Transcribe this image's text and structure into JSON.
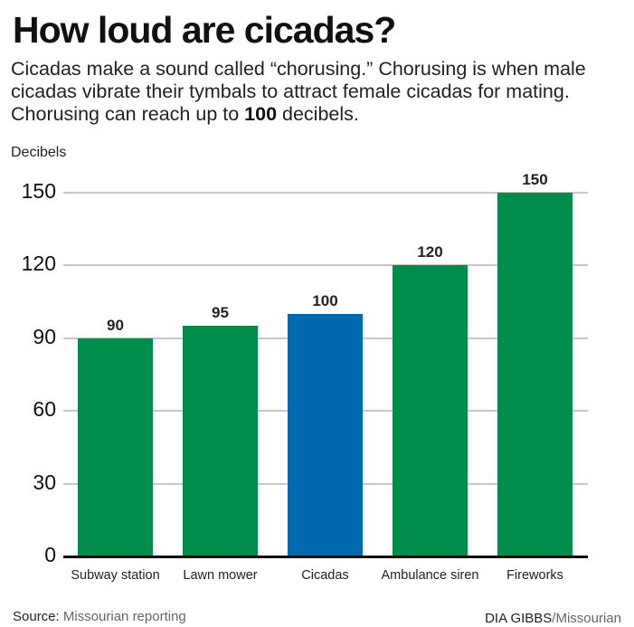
{
  "header": {
    "title": "How loud are cicadas?",
    "subtitle_pre": "Cicadas make a sound called “chorusing.” Chorusing is when male cicadas vibrate their tymbals to attract female cicadas for mating. Chorusing can reach up to ",
    "subtitle_bold": "100",
    "subtitle_post": " decibels."
  },
  "footer": {
    "source_label": "Source:",
    "source_text": " Missourian reporting",
    "credit_name": "DIA GIBBS",
    "credit_org": "/Missourian"
  },
  "colors": {
    "default_bar": "#008c4a",
    "highlight_bar": "#0069b0",
    "gridline": "#c8c8c8",
    "baseline": "#111111"
  },
  "chart_data": {
    "type": "bar",
    "title": "How loud are cicadas?",
    "xlabel": "",
    "ylabel": "Decibels",
    "ylim": [
      0,
      150
    ],
    "yticks": [
      0,
      30,
      60,
      90,
      120,
      150
    ],
    "grid": true,
    "categories": [
      "Subway station",
      "Lawn mower",
      "Cicadas",
      "Ambulance siren",
      "Fireworks"
    ],
    "values": [
      90,
      95,
      100,
      120,
      150
    ],
    "value_labels": [
      "90",
      "95",
      "100",
      "120",
      "150"
    ],
    "highlight": "Cicadas",
    "bar_colors": [
      "#008c4a",
      "#008c4a",
      "#0069b0",
      "#008c4a",
      "#008c4a"
    ],
    "annotations": [
      "Chorusing can reach up to 100 decibels."
    ],
    "source": "Missourian reporting"
  }
}
